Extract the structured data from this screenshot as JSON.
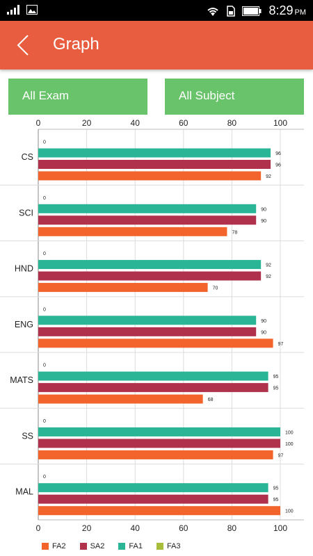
{
  "status_bar": {
    "time": "8:29",
    "ampm": "PM"
  },
  "header": {
    "title": "Graph"
  },
  "filters": {
    "exam": "All Exam",
    "subject": "All Subject"
  },
  "colors": {
    "appbar": "#e85d3f",
    "filter": "#68c36a",
    "FA1": "#2bb597",
    "SA2": "#b0314b",
    "FA2": "#f2642b",
    "FA3": "#a8bd3a"
  },
  "chart_data": {
    "type": "bar",
    "orientation": "horizontal",
    "categories": [
      "CS",
      "SCI",
      "HND",
      "ENG",
      "MATS",
      "SS",
      "MAL"
    ],
    "series": [
      {
        "name": "FA3",
        "values": [
          0,
          0,
          0,
          0,
          0,
          0,
          0
        ]
      },
      {
        "name": "FA1",
        "values": [
          96,
          90,
          92,
          90,
          95,
          100,
          95
        ]
      },
      {
        "name": "SA2",
        "values": [
          96,
          90,
          92,
          90,
          95,
          100,
          95
        ]
      },
      {
        "name": "FA2",
        "values": [
          92,
          78,
          70,
          97,
          68,
          97,
          100
        ]
      }
    ],
    "legend_order": [
      "FA2",
      "SA2",
      "FA1",
      "FA3"
    ],
    "xlim": [
      0,
      100
    ],
    "xticks": [
      0,
      20,
      40,
      60,
      80,
      100
    ],
    "grid": true,
    "legend_position": "bottom"
  }
}
